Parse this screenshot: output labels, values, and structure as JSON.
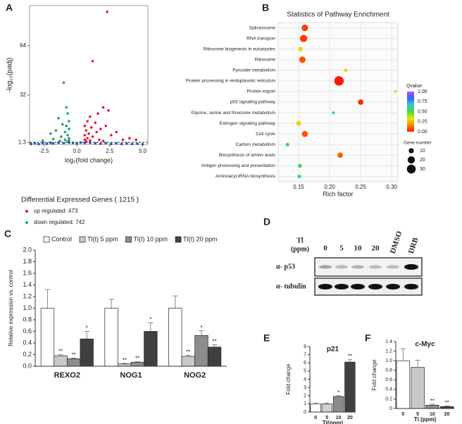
{
  "chart_data": [
    {
      "panel": "A",
      "type": "scatter",
      "xlabel": "log₂(fold change)",
      "ylabel": "-log₁₀(padj)",
      "xlim": [
        -3.6,
        5.4
      ],
      "ylim": [
        0,
        90
      ],
      "xticks": [
        -2.5,
        {
          "value": 0,
          "label": "0.0"
        },
        2.5,
        {
          "value": 5,
          "label": "5.0"
        }
      ],
      "yticks": [
        1.3,
        32,
        64
      ],
      "threshold": 1.3,
      "legend_title": "Differential Expressed Genes ( 1215 )",
      "series": [
        {
          "color": "#1f5bc4",
          "x": [
            -3.5,
            -3.2,
            -2.9,
            -2.6,
            -2.3,
            -2.0,
            -1.8,
            -1.4,
            -1.0,
            -0.6,
            -0.3,
            0,
            0.3,
            0.6,
            1.0,
            1.4,
            1.8,
            2.2,
            2.6,
            3.0,
            3.4,
            3.8,
            4.2,
            4.6,
            5.0
          ],
          "y": [
            0.3,
            0.6,
            0.2,
            0.9,
            0.4,
            1.0,
            0.5,
            1.1,
            0.8,
            1.2,
            1.0,
            0.6,
            1.2,
            0.9,
            1.1,
            0.7,
            0.4,
            0.8,
            0.3,
            0.6,
            0.2,
            0.5,
            0.2,
            0.4,
            0.1
          ]
        },
        {
          "name": "up regulated: 473",
          "color": "#e8173f",
          "x": [
            2.3,
            1.2,
            2.0,
            2.4,
            1.6,
            1.0,
            0.8,
            1.4,
            2.2,
            0.6,
            1.1,
            1.8,
            0.7,
            3.0,
            1.5,
            0.9,
            2.6,
            0.6,
            1.2,
            4.0,
            4.5,
            0.8,
            1.7,
            0.6,
            3.5,
            1.0,
            2.0,
            0.7
          ],
          "y": [
            86,
            54,
            24,
            22,
            20,
            18,
            15,
            14,
            12,
            12,
            11,
            10,
            9,
            8,
            8,
            7,
            6,
            6,
            5,
            4,
            3,
            4,
            3,
            3,
            3,
            2.5,
            2.2,
            2
          ]
        },
        {
          "name": "down regulated: 742",
          "color": "#22a36a",
          "x": [
            -1.0,
            -0.8,
            -0.7,
            -1.4,
            -0.6,
            -1.1,
            -0.8,
            -0.6,
            -1.6,
            -0.9,
            -2.0,
            -0.7,
            -1.2,
            -0.6,
            -1.8,
            -0.9,
            -0.6,
            -1.3,
            -0.7,
            -2.6
          ],
          "y": [
            40,
            24,
            20,
            17,
            15,
            13,
            12,
            10,
            9,
            8,
            7,
            6,
            5,
            4,
            3.5,
            3,
            2.5,
            2.2,
            2,
            2.5
          ]
        }
      ]
    },
    {
      "panel": "B",
      "type": "bubble",
      "title": "Statistics of Pathway Enrichment",
      "xlabel": "Rich factor",
      "categories": [
        "Spliceosome",
        "RNA transport",
        "Ribosome biogenesis in eukaryotes",
        "Ribosome",
        "Pyruvate metabolism",
        "Protein processing in endoplasmic reticulum",
        "Protein export",
        "p53 signaling pathway",
        "Glycine, serine and threonine metabolism",
        "Estrogen signaling pathway",
        "Cell cycle",
        "Carbon metabolism",
        "Biosynthesis of amino acids",
        "Antigen processing and presentation",
        "Aminoacyl-tRNA biosynthesis"
      ],
      "values": [
        0.16,
        0.158,
        0.153,
        0.156,
        0.226,
        0.215,
        0.306,
        0.25,
        0.206,
        0.15,
        0.16,
        0.132,
        0.217,
        0.152,
        0.151
      ],
      "sizes": [
        16,
        20,
        8,
        16,
        4,
        34,
        3,
        11,
        3,
        9,
        14,
        5,
        11,
        6,
        5
      ],
      "qvalues": [
        0.05,
        0.04,
        0.35,
        0.08,
        0.3,
        0.0,
        0.35,
        0.02,
        0.55,
        0.3,
        0.08,
        0.55,
        0.1,
        0.5,
        0.55
      ],
      "xlim": [
        0.117,
        0.31
      ],
      "xticks": [
        0.15,
        {
          "value": 0.2,
          "label": "0.20"
        },
        0.25,
        {
          "value": 0.3,
          "label": "0.30"
        }
      ],
      "colorbar_title": "Qvalue",
      "qlim": [
        0,
        1
      ],
      "colormap": [
        "#ff1a00",
        "#ff8c00",
        "#e6e600",
        "#3ddc3d",
        "#33cccc",
        "#3366ff",
        "#b84dff"
      ],
      "colorbar_ticks": [
        {
          "value": 0,
          "label": "0.00"
        },
        0.25,
        {
          "value": 0.5,
          "label": "0.50"
        },
        0.75,
        {
          "value": 1,
          "label": "1.00"
        }
      ],
      "size_title": "Gene number",
      "size_legend": [
        10,
        20,
        30
      ]
    },
    {
      "panel": "C",
      "type": "bar",
      "ylabel": "Relative expression vs. control",
      "categories": [
        "REXO2",
        "NOG1",
        "NOG2"
      ],
      "ylim": [
        0,
        2
      ],
      "yticks": [
        {
          "value": 0,
          "label": "0.0"
        },
        0.2,
        0.4,
        0.6,
        0.8,
        {
          "value": 1,
          "label": "1.0"
        },
        1.2,
        1.4,
        1.6,
        1.8,
        {
          "value": 2,
          "label": "2.0"
        }
      ],
      "series": [
        {
          "name": "Control",
          "color": "#ffffff",
          "values": [
            1.0,
            1.0,
            1.0
          ],
          "errors": [
            0.32,
            0.15,
            0.21
          ],
          "significance": [
            null,
            null,
            null
          ]
        },
        {
          "name": "Tl(I) 5 ppm",
          "color": "#c8c8c8",
          "values": [
            0.18,
            0.04,
            0.17
          ],
          "errors": [
            0.02,
            0.01,
            0.02
          ],
          "significance": [
            "**",
            "**",
            "**"
          ]
        },
        {
          "name": "Tl(I) 10 ppm",
          "color": "#8c8c8c",
          "values": [
            0.13,
            0.07,
            0.53
          ],
          "errors": [
            0.01,
            0.01,
            0.08
          ],
          "significance": [
            "**",
            "**",
            "*"
          ]
        },
        {
          "name": "Tl(I) 20 ppm",
          "color": "#404040",
          "values": [
            0.47,
            0.6,
            0.33
          ],
          "errors": [
            0.13,
            0.15,
            0.04
          ],
          "significance": [
            "*",
            "*",
            "**"
          ]
        }
      ]
    },
    {
      "panel": "E",
      "type": "bar",
      "title": "p21",
      "xlabel": "Tl(ppm)",
      "ylabel": "Fold change",
      "categories": [
        "0",
        "5",
        "10",
        "20"
      ],
      "values": [
        1.0,
        1.0,
        1.9,
        6.1
      ],
      "errors": [
        0.1,
        0.1,
        0.1,
        0.3
      ],
      "significance": [
        null,
        null,
        "*",
        "**"
      ],
      "colors": [
        "#ffffff",
        "#d0d0d0",
        "#8c8c8c",
        "#404040"
      ],
      "ylim": [
        0,
        8
      ],
      "yticks": [
        0,
        1,
        2,
        3,
        4,
        5,
        6,
        7,
        8
      ]
    },
    {
      "panel": "F",
      "type": "bar",
      "title": "c-Myc",
      "xlabel": "Tl (ppm)",
      "ylabel": "Fold change",
      "categories": [
        "0",
        "5",
        "10",
        "20"
      ],
      "values": [
        1.0,
        0.86,
        0.07,
        0.04
      ],
      "errors": [
        0.25,
        0.15,
        0.02,
        0.015
      ],
      "significance": [
        null,
        null,
        "**",
        "**"
      ],
      "colors": [
        "#ffffff",
        "#c8c8c8",
        "#8c8c8c",
        "#404040"
      ],
      "ylim": [
        0,
        1.4
      ],
      "yticks": [
        0,
        0.2,
        0.4,
        0.6,
        0.8,
        {
          "value": 1,
          "label": "1.0"
        },
        1.2,
        1.4
      ]
    }
  ],
  "blot": {
    "panel": "D",
    "treatment": "Tl",
    "unit": "(ppm)",
    "lanes": [
      "0",
      "5",
      "10",
      "20",
      "DMSO",
      "DRB"
    ],
    "rows": [
      "α- p53",
      "α- tubulin"
    ]
  }
}
